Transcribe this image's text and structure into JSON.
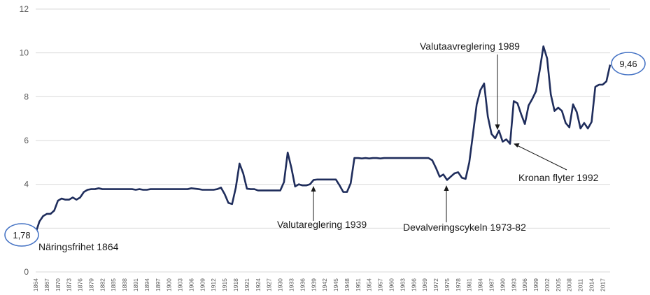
{
  "chart_data": {
    "type": "line",
    "title": "",
    "xlabel": "",
    "ylabel": "",
    "ylim": [
      0,
      12
    ],
    "yticks": [
      0,
      2,
      4,
      6,
      8,
      10,
      12
    ],
    "xlim": [
      1864,
      2019
    ],
    "xticks": [
      1864,
      1867,
      1870,
      1873,
      1876,
      1879,
      1882,
      1885,
      1888,
      1891,
      1894,
      1897,
      1900,
      1903,
      1906,
      1909,
      1912,
      1915,
      1918,
      1921,
      1924,
      1927,
      1930,
      1933,
      1936,
      1939,
      1942,
      1945,
      1948,
      1951,
      1954,
      1957,
      1960,
      1963,
      1966,
      1969,
      1972,
      1975,
      1978,
      1981,
      1984,
      1987,
      1990,
      1993,
      1996,
      1999,
      2002,
      2005,
      2008,
      2011,
      2014,
      2017
    ],
    "grid": "horizontal",
    "series": [
      {
        "name": "",
        "color": "#1f2d5c",
        "x": [
          1864,
          1865,
          1866,
          1867,
          1868,
          1869,
          1870,
          1871,
          1872,
          1873,
          1874,
          1875,
          1876,
          1877,
          1878,
          1879,
          1880,
          1881,
          1882,
          1885,
          1890,
          1891,
          1892,
          1893,
          1894,
          1895,
          1896,
          1900,
          1905,
          1906,
          1907,
          1908,
          1909,
          1910,
          1912,
          1913,
          1914,
          1915,
          1916,
          1917,
          1918,
          1919,
          1920,
          1921,
          1922,
          1923,
          1924,
          1925,
          1930,
          1931,
          1932,
          1933,
          1934,
          1935,
          1936,
          1937,
          1938,
          1939,
          1940,
          1945,
          1946,
          1947,
          1948,
          1949,
          1950,
          1951,
          1952,
          1953,
          1954,
          1955,
          1956,
          1957,
          1958,
          1959,
          1960,
          1965,
          1969,
          1970,
          1971,
          1972,
          1973,
          1974,
          1975,
          1976,
          1977,
          1978,
          1979,
          1980,
          1981,
          1982,
          1983,
          1984,
          1985,
          1986,
          1987,
          1988,
          1989,
          1990,
          1991,
          1992,
          1993,
          1994,
          1995,
          1996,
          1997,
          1998,
          1999,
          2000,
          2001,
          2002,
          2003,
          2004,
          2005,
          2006,
          2007,
          2008,
          2009,
          2010,
          2011,
          2012,
          2013,
          2014,
          2015,
          2016,
          2017,
          2018,
          2019
        ],
        "y": [
          1.78,
          2.3,
          2.55,
          2.65,
          2.65,
          2.8,
          3.25,
          3.35,
          3.3,
          3.3,
          3.4,
          3.3,
          3.4,
          3.65,
          3.75,
          3.78,
          3.78,
          3.82,
          3.78,
          3.78,
          3.78,
          3.75,
          3.78,
          3.75,
          3.75,
          3.78,
          3.78,
          3.78,
          3.78,
          3.82,
          3.8,
          3.78,
          3.75,
          3.75,
          3.75,
          3.78,
          3.85,
          3.55,
          3.15,
          3.1,
          3.85,
          4.95,
          4.5,
          3.8,
          3.78,
          3.78,
          3.72,
          3.72,
          3.72,
          4.1,
          5.45,
          4.75,
          3.9,
          4.0,
          3.95,
          3.95,
          4.0,
          4.2,
          4.22,
          4.22,
          3.95,
          3.65,
          3.65,
          4.05,
          5.2,
          5.2,
          5.18,
          5.2,
          5.18,
          5.2,
          5.2,
          5.18,
          5.2,
          5.2,
          5.2,
          5.2,
          5.2,
          5.2,
          5.1,
          4.75,
          4.35,
          4.45,
          4.2,
          4.35,
          4.5,
          4.55,
          4.3,
          4.25,
          5.0,
          6.3,
          7.65,
          8.3,
          8.6,
          7.1,
          6.3,
          6.1,
          6.45,
          5.95,
          6.05,
          5.85,
          7.8,
          7.7,
          7.2,
          6.75,
          7.6,
          7.9,
          8.25,
          9.2,
          10.3,
          9.75,
          8.1,
          7.35,
          7.5,
          7.35,
          6.8,
          6.6,
          7.65,
          7.3,
          6.55,
          6.8,
          6.55,
          6.85,
          8.45,
          8.55,
          8.55,
          8.7,
          9.46
        ]
      }
    ],
    "annotations": [
      {
        "text": "Näringsfrihet 1864",
        "year": 1864
      },
      {
        "text": "Valutareglering 1939",
        "year": 1939
      },
      {
        "text": "Devalveringscykeln 1973-82",
        "year": 1975
      },
      {
        "text": "Valutaavreglering 1989",
        "year": 1989
      },
      {
        "text": "Kronan flyter 1992",
        "year": 1992
      }
    ],
    "callouts": [
      {
        "text": "1,78",
        "year": 1864,
        "value": 1.78
      },
      {
        "text": "9,46",
        "year": 2019,
        "value": 9.46
      }
    ]
  }
}
